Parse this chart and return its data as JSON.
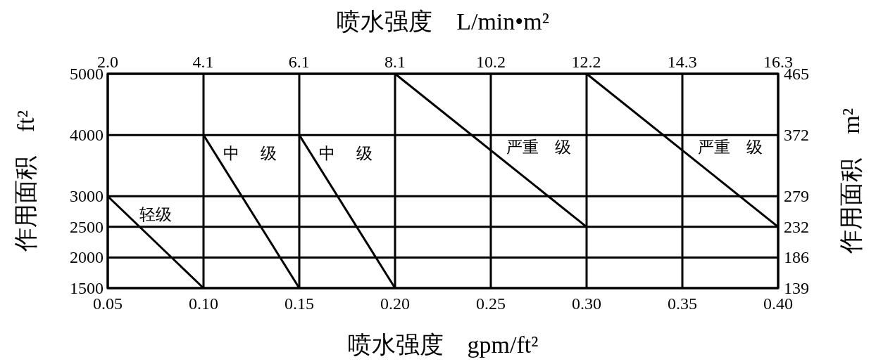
{
  "chart_data": {
    "type": "line",
    "xlabel": "喷水强度　gpm/ft²",
    "x2label": "喷水强度　L/min•m²",
    "ylabel": "作用面积　ft²",
    "y2label": "作用面积　m²",
    "xlim": [
      0.05,
      0.4
    ],
    "xticks": [
      {
        "value": 0.05,
        "label": "0.05"
      },
      {
        "value": 0.1,
        "label": "0.10"
      },
      {
        "value": 0.15,
        "label": "0.15"
      },
      {
        "value": 0.2,
        "label": "0.20"
      },
      {
        "value": 0.25,
        "label": "0.25"
      },
      {
        "value": 0.3,
        "label": "0.30"
      },
      {
        "value": 0.35,
        "label": "0.35"
      },
      {
        "value": 0.4,
        "label": "0.40"
      }
    ],
    "x2lim": [
      2.04,
      16.3
    ],
    "x2ticks": [
      {
        "value": 2.04,
        "label": "2.0"
      },
      {
        "value": 4.07,
        "label": "4.1"
      },
      {
        "value": 6.11,
        "label": "6.1"
      },
      {
        "value": 8.15,
        "label": "8.1"
      },
      {
        "value": 10.19,
        "label": "10.2"
      },
      {
        "value": 12.22,
        "label": "12.2"
      },
      {
        "value": 14.26,
        "label": "14.3"
      },
      16.3
    ],
    "ylim": [
      1500,
      5000
    ],
    "yticks": [
      1500,
      2000,
      2500,
      3000,
      4000,
      5000
    ],
    "y2lim": [
      139,
      465
    ],
    "y2ticks": [
      139,
      186,
      232,
      279,
      372,
      465
    ],
    "grid": true,
    "series": [
      {
        "color": "#000000",
        "x": [
          0.05,
          0.1
        ],
        "values": [
          3000,
          1500
        ]
      },
      {
        "color": "#000000",
        "x": [
          0.1,
          0.15
        ],
        "values": [
          4000,
          1500
        ]
      },
      {
        "color": "#000000",
        "x": [
          0.15,
          0.2
        ],
        "values": [
          4000,
          1500
        ]
      },
      {
        "color": "#000000",
        "x": [
          0.2,
          0.3
        ],
        "values": [
          5000,
          2500
        ]
      },
      {
        "color": "#000000",
        "x": [
          0.3,
          0.4
        ],
        "values": [
          5000,
          2500
        ]
      }
    ],
    "annotations": [
      "轻级",
      "中　 级",
      "中　 级",
      "严重　级",
      "严重　级"
    ]
  }
}
